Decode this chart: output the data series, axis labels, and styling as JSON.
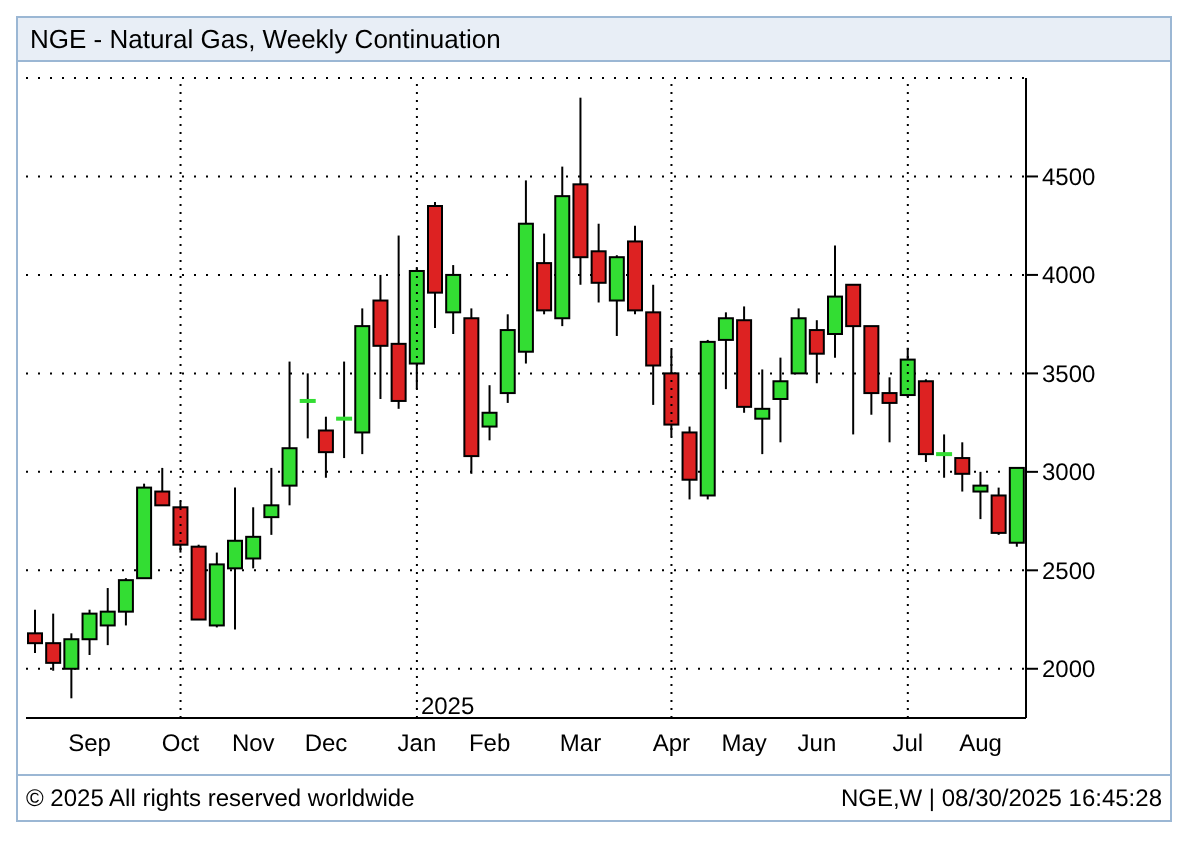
{
  "chart_data": {
    "type": "candlestick",
    "title": "NGE - Natural Gas, Weekly Continuation",
    "categories": [
      null,
      null,
      null,
      "Sep",
      null,
      null,
      null,
      null,
      "Oct",
      null,
      null,
      null,
      "Nov",
      null,
      null,
      null,
      "Dec",
      null,
      null,
      null,
      null,
      "Jan",
      null,
      null,
      null,
      "Feb",
      null,
      null,
      null,
      null,
      "Mar",
      null,
      null,
      null,
      null,
      "Apr",
      null,
      null,
      null,
      "May",
      null,
      null,
      null,
      "Jun",
      null,
      null,
      null,
      null,
      "Jul",
      null,
      null,
      null,
      "Aug",
      null,
      null
    ],
    "ohlc": [
      [
        2180,
        2300,
        2080,
        2130
      ],
      [
        2130,
        2280,
        1990,
        2030
      ],
      [
        2000,
        2180,
        1850,
        2150
      ],
      [
        2150,
        2300,
        2070,
        2280
      ],
      [
        2220,
        2410,
        2120,
        2290
      ],
      [
        2290,
        2460,
        2220,
        2450
      ],
      [
        2460,
        2940,
        2460,
        2920
      ],
      [
        2900,
        3020,
        2830,
        2830
      ],
      [
        2820,
        2850,
        2590,
        2630
      ],
      [
        2620,
        2630,
        2250,
        2250
      ],
      [
        2220,
        2590,
        2210,
        2530
      ],
      [
        2510,
        2920,
        2200,
        2650
      ],
      [
        2560,
        2820,
        2510,
        2670
      ],
      [
        2770,
        3020,
        2680,
        2830
      ],
      [
        2930,
        3560,
        2830,
        3120
      ],
      [
        3360,
        3500,
        3170,
        3360
      ],
      [
        3210,
        3280,
        2970,
        3100
      ],
      [
        3270,
        3560,
        3070,
        3270
      ],
      [
        3200,
        3830,
        3090,
        3740
      ],
      [
        3870,
        4000,
        3370,
        3640
      ],
      [
        3650,
        4200,
        3320,
        3360
      ],
      [
        3550,
        4040,
        3420,
        4020
      ],
      [
        4350,
        4370,
        3730,
        3910
      ],
      [
        3810,
        4050,
        3700,
        4000
      ],
      [
        3780,
        3830,
        2990,
        3080
      ],
      [
        3230,
        3440,
        3160,
        3300
      ],
      [
        3400,
        3800,
        3350,
        3720
      ],
      [
        3610,
        4480,
        3550,
        4260
      ],
      [
        4060,
        4210,
        3800,
        3820
      ],
      [
        3780,
        4550,
        3740,
        4400
      ],
      [
        4460,
        4900,
        3950,
        4090
      ],
      [
        4120,
        4260,
        3860,
        3960
      ],
      [
        3870,
        4100,
        3690,
        4090
      ],
      [
        4170,
        4250,
        3800,
        3820
      ],
      [
        3810,
        3950,
        3340,
        3540
      ],
      [
        3500,
        3620,
        3180,
        3240
      ],
      [
        3200,
        3230,
        2860,
        2960
      ],
      [
        2880,
        3670,
        2860,
        3660
      ],
      [
        3670,
        3810,
        3420,
        3780
      ],
      [
        3770,
        3840,
        3300,
        3330
      ],
      [
        3270,
        3520,
        3090,
        3320
      ],
      [
        3370,
        3580,
        3150,
        3460
      ],
      [
        3500,
        3830,
        3500,
        3780
      ],
      [
        3720,
        3770,
        3450,
        3600
      ],
      [
        3700,
        4150,
        3580,
        3890
      ],
      [
        3950,
        3950,
        3190,
        3740
      ],
      [
        3740,
        3740,
        3290,
        3400
      ],
      [
        3400,
        3480,
        3150,
        3350
      ],
      [
        3390,
        3630,
        3380,
        3570
      ],
      [
        3460,
        3470,
        3050,
        3090
      ],
      [
        3090,
        3190,
        2970,
        3090
      ],
      [
        3070,
        3150,
        2900,
        2990
      ],
      [
        2900,
        3000,
        2760,
        2930
      ],
      [
        2880,
        2920,
        2680,
        2690
      ],
      [
        2640,
        3020,
        2620,
        3020
      ]
    ],
    "colors": [
      "#dd2222",
      "#dd2222",
      "#33dd33",
      "#33dd33",
      "#33dd33",
      "#33dd33",
      "#33dd33",
      "#dd2222",
      "#dd2222",
      "#dd2222",
      "#33dd33",
      "#33dd33",
      "#33dd33",
      "#33dd33",
      "#33dd33",
      "#33dd33",
      "#dd2222",
      "#33dd33",
      "#33dd33",
      "#dd2222",
      "#dd2222",
      "#33dd33",
      "#dd2222",
      "#33dd33",
      "#dd2222",
      "#33dd33",
      "#33dd33",
      "#33dd33",
      "#dd2222",
      "#33dd33",
      "#dd2222",
      "#dd2222",
      "#33dd33",
      "#dd2222",
      "#dd2222",
      "#dd2222",
      "#dd2222",
      "#33dd33",
      "#33dd33",
      "#dd2222",
      "#33dd33",
      "#33dd33",
      "#33dd33",
      "#dd2222",
      "#33dd33",
      "#dd2222",
      "#dd2222",
      "#dd2222",
      "#33dd33",
      "#dd2222",
      "#33dd33",
      "#dd2222",
      "#33dd33",
      "#dd2222",
      "#33dd33"
    ],
    "ylim": [
      1750,
      5000
    ],
    "yticks": [
      2000,
      2500,
      3000,
      3500,
      4000,
      4500
    ],
    "grid": "y",
    "ref_lines": [
      {
        "axis": "x",
        "value": "Oct",
        "label": null,
        "color": "#000000",
        "line_style": "dotted"
      },
      {
        "axis": "x",
        "value": "Jan",
        "label": "2025",
        "color": "#000000",
        "line_style": "dotted"
      },
      {
        "axis": "x",
        "value": "Apr",
        "label": null,
        "color": "#000000",
        "line_style": "dotted"
      },
      {
        "axis": "x",
        "value": "Jul",
        "label": null,
        "color": "#000000",
        "line_style": "dotted"
      }
    ],
    "annotations": [
      "© 2025 All rights reserved worldwide",
      "NGE,W | 08/30/2025 16:45:28"
    ]
  }
}
